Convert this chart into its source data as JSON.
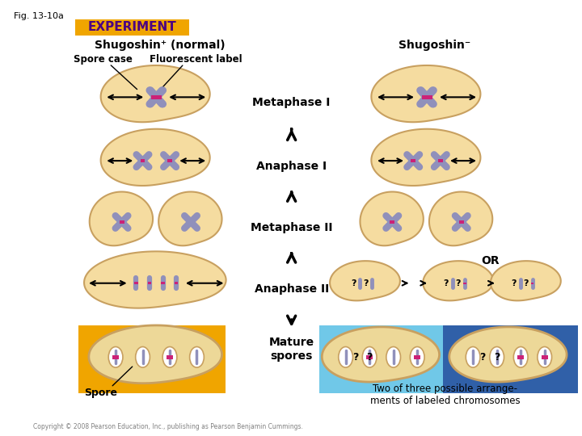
{
  "fig_label": "Fig. 13-10a",
  "experiment_label": "EXPERIMENT",
  "experiment_bg": "#F0A500",
  "experiment_text_color": "#4B0082",
  "title_left": "Shugoshin⁺ (normal)",
  "title_right": "Shugoshin⁻",
  "subtitle_left1": "Spore case",
  "subtitle_left2": "Fluorescent label",
  "stage_labels": [
    "Metaphase I",
    "Anaphase I",
    "Metaphase II",
    "Anaphase II"
  ],
  "mature_spores_label": "Mature\nspores",
  "spore_label": "Spore",
  "two_of_three_label": "Two of three possible arrange-\nments of labeled chromosomes",
  "or_label": "OR",
  "bg_color": "#FFFFFF",
  "cell_color": "#F5DCA0",
  "cell_outline": "#C8A060",
  "chromosome_color": "#9090BB",
  "centromere_color": "#CC2277",
  "orange_bg": "#F0A500",
  "light_blue_bg": "#70C8E8",
  "dark_blue_bg": "#3060A8",
  "copyright": "Copyright © 2008 Pearson Education, Inc., publishing as Pearson Benjamin Cummings."
}
